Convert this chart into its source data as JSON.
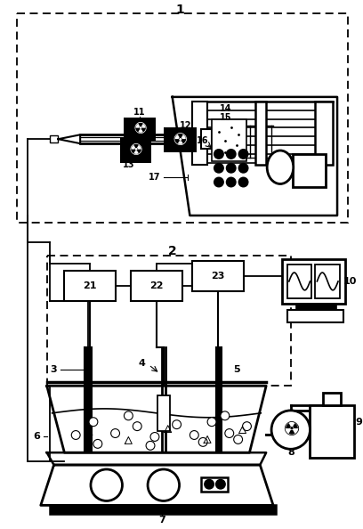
{
  "bg_color": "#ffffff",
  "fig_w": 4.08,
  "fig_h": 5.94,
  "dpi": 100
}
